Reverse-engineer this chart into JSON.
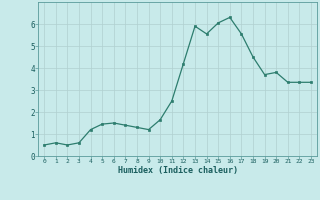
{
  "x": [
    0,
    1,
    2,
    3,
    4,
    5,
    6,
    7,
    8,
    9,
    10,
    11,
    12,
    13,
    14,
    15,
    16,
    17,
    18,
    19,
    20,
    21,
    22,
    23
  ],
  "y": [
    0.5,
    0.6,
    0.5,
    0.6,
    1.2,
    1.45,
    1.5,
    1.4,
    1.3,
    1.2,
    1.65,
    2.5,
    4.2,
    5.9,
    5.55,
    6.05,
    6.3,
    5.55,
    4.5,
    3.7,
    3.8,
    3.35,
    3.35,
    3.35
  ],
  "xlabel": "Humidex (Indice chaleur)",
  "ylim": [
    0,
    7
  ],
  "xlim": [
    -0.5,
    23.5
  ],
  "yticks": [
    0,
    1,
    2,
    3,
    4,
    5,
    6
  ],
  "xticks": [
    0,
    1,
    2,
    3,
    4,
    5,
    6,
    7,
    8,
    9,
    10,
    11,
    12,
    13,
    14,
    15,
    16,
    17,
    18,
    19,
    20,
    21,
    22,
    23
  ],
  "line_color": "#2d7d6e",
  "marker_color": "#2d7d6e",
  "bg_color": "#c8eaea",
  "grid_color": "#b0d0d0",
  "tick_label_color": "#1a5e5e",
  "xlabel_color": "#1a5e5e"
}
